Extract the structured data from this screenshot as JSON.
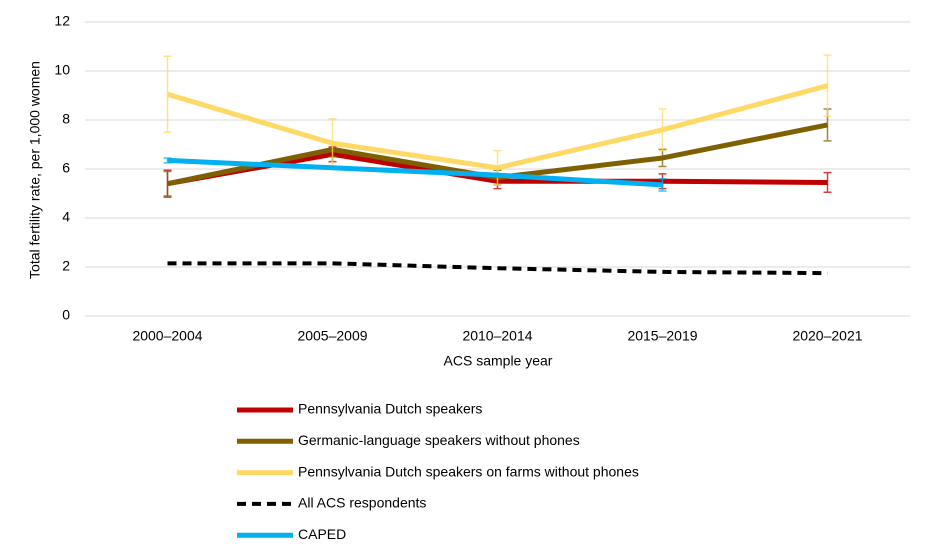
{
  "chart_data": {
    "type": "line",
    "x_label": "ACS sample year",
    "y_label": "Total fertility rate, per 1,000 women",
    "categories": [
      "2000–2004",
      "2005–2009",
      "2010–2014",
      "2015–2019",
      "2020–2021"
    ],
    "ylim": [
      0,
      12
    ],
    "yticks": [
      0,
      2,
      4,
      6,
      8,
      10,
      12
    ],
    "grid": true,
    "series": [
      {
        "name": "Pennsylvania Dutch speakers",
        "color": "#c00000",
        "values": [
          5.4,
          6.6,
          5.5,
          5.5,
          5.45
        ],
        "errors": [
          0.55,
          0.3,
          0.3,
          0.3,
          0.4
        ]
      },
      {
        "name": "Germanic-language speakers without phones",
        "color": "#7f6000",
        "values": [
          5.4,
          6.8,
          5.65,
          6.45,
          7.8
        ],
        "errors": [
          0.5,
          0.3,
          0.3,
          0.35,
          0.65
        ]
      },
      {
        "name": "Pennsylvania Dutch speakers on farms without phones",
        "color": "#ffd966",
        "values": [
          9.05,
          7.05,
          6.05,
          7.6,
          9.4
        ],
        "errors": [
          1.55,
          1.0,
          0.7,
          0.85,
          1.25
        ]
      },
      {
        "name": "All ACS respondents",
        "color": "#000000",
        "dashed": true,
        "values": [
          2.15,
          2.15,
          1.95,
          1.8,
          1.75
        ]
      },
      {
        "name": "CAPED",
        "color": "#00b0f0",
        "values": [
          6.35,
          6.05,
          5.75,
          5.35,
          null
        ],
        "errors": [
          0.1,
          null,
          null,
          0.25,
          null
        ]
      }
    ]
  }
}
